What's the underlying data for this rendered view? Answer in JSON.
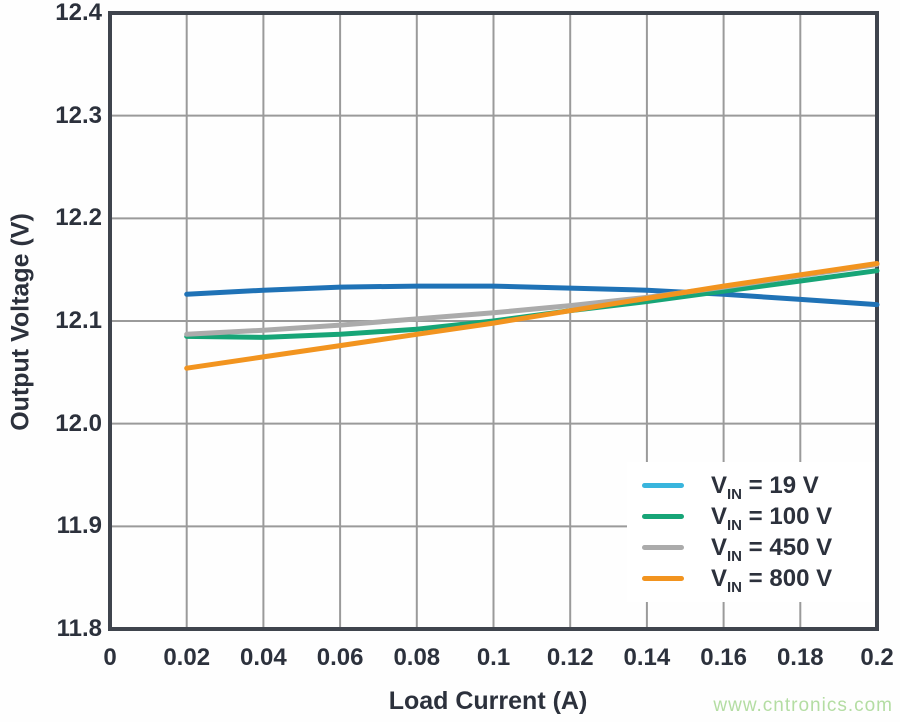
{
  "watermark": {
    "text": "www.cntronics.com",
    "color": "#b4dda3"
  },
  "style_colors": {
    "text": "#2c313c",
    "gridline": "#9a9a9a",
    "frame": "#3f444d",
    "background": "#ffffff"
  },
  "chart_data": {
    "type": "line",
    "title": "",
    "xlabel": "Load Current (A)",
    "ylabel": "Output Voltage (V)",
    "xlim": [
      0,
      0.2
    ],
    "ylim": [
      11.8,
      12.4
    ],
    "grid": true,
    "legend_position": "lower right",
    "x_ticks": [
      "0",
      "0.02",
      "0.04",
      "0.06",
      "0.08",
      "0.1",
      "0.12",
      "0.14",
      "0.16",
      "0.18",
      "0.2"
    ],
    "x_tick_values": [
      0,
      0.02,
      0.04,
      0.06,
      0.08,
      0.1,
      0.12,
      0.14,
      0.16,
      0.18,
      0.2
    ],
    "y_ticks": [
      "12.4",
      "12.3",
      "12.2",
      "12.1",
      "12.0",
      "11.9",
      "11.8"
    ],
    "y_tick_values": [
      12.4,
      12.3,
      12.2,
      12.1,
      12.0,
      11.9,
      11.8
    ],
    "x": [
      0.02,
      0.04,
      0.06,
      0.08,
      0.1,
      0.12,
      0.14,
      0.16,
      0.18,
      0.2
    ],
    "series": [
      {
        "name": "VIN = 19 V",
        "label": {
          "prefix": "V",
          "sub": "IN",
          "rest": " = 19 V"
        },
        "line_color": "#1f72b6",
        "swatch_color": "#39b5dd",
        "values": [
          12.126,
          12.13,
          12.133,
          12.134,
          12.134,
          12.132,
          12.13,
          12.126,
          12.121,
          12.116
        ]
      },
      {
        "name": "VIN = 100 V",
        "label": {
          "prefix": "V",
          "sub": "IN",
          "rest": " = 100 V"
        },
        "line_color": "#17a577",
        "swatch_color": "#17a577",
        "values": [
          12.085,
          12.084,
          12.087,
          12.092,
          12.1,
          12.11,
          12.119,
          12.129,
          12.139,
          12.149
        ]
      },
      {
        "name": "VIN = 450 V",
        "label": {
          "prefix": "V",
          "sub": "IN",
          "rest": " = 450 V"
        },
        "line_color": "#ababab",
        "swatch_color": "#ababab",
        "values": [
          12.087,
          12.091,
          12.096,
          12.102,
          12.108,
          12.115,
          12.123,
          12.133,
          12.144,
          12.155
        ]
      },
      {
        "name": "VIN = 800 V",
        "label": {
          "prefix": "V",
          "sub": "IN",
          "rest": " = 800 V"
        },
        "line_color": "#f2941f",
        "swatch_color": "#f2941f",
        "values": [
          12.054,
          12.065,
          12.076,
          12.087,
          12.098,
          12.11,
          12.122,
          12.134,
          12.145,
          12.156
        ]
      }
    ]
  }
}
